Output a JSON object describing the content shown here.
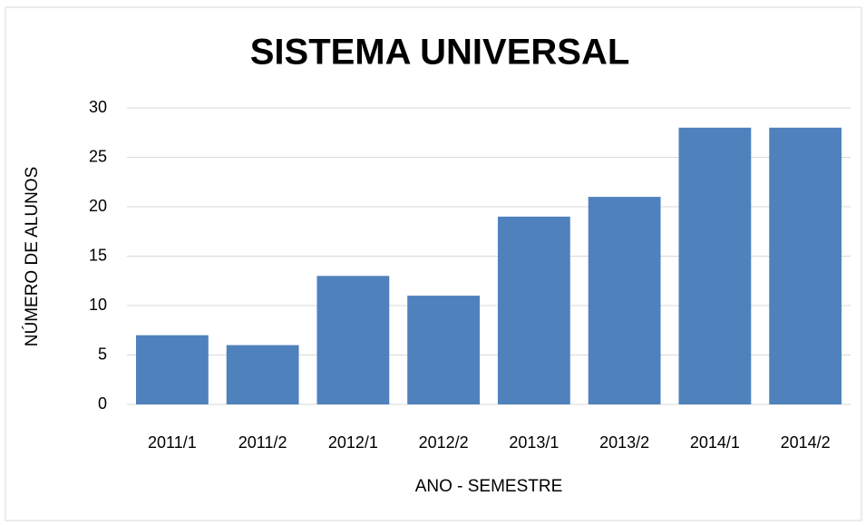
{
  "chart_data": {
    "type": "bar",
    "title": "SISTEMA UNIVERSAL",
    "xlabel": "ANO - SEMESTRE",
    "ylabel": "NÚMERO DE ALUNOS",
    "categories": [
      "2011/1",
      "2011/2",
      "2012/1",
      "2012/2",
      "2013/1",
      "2013/2",
      "2014/1",
      "2014/2"
    ],
    "values": [
      7,
      6,
      13,
      11,
      19,
      21,
      28,
      28
    ],
    "color": "#4f81bd",
    "ylim": [
      0,
      30
    ],
    "yticks": [
      0,
      5,
      10,
      15,
      20,
      25,
      30
    ],
    "grid": true
  }
}
